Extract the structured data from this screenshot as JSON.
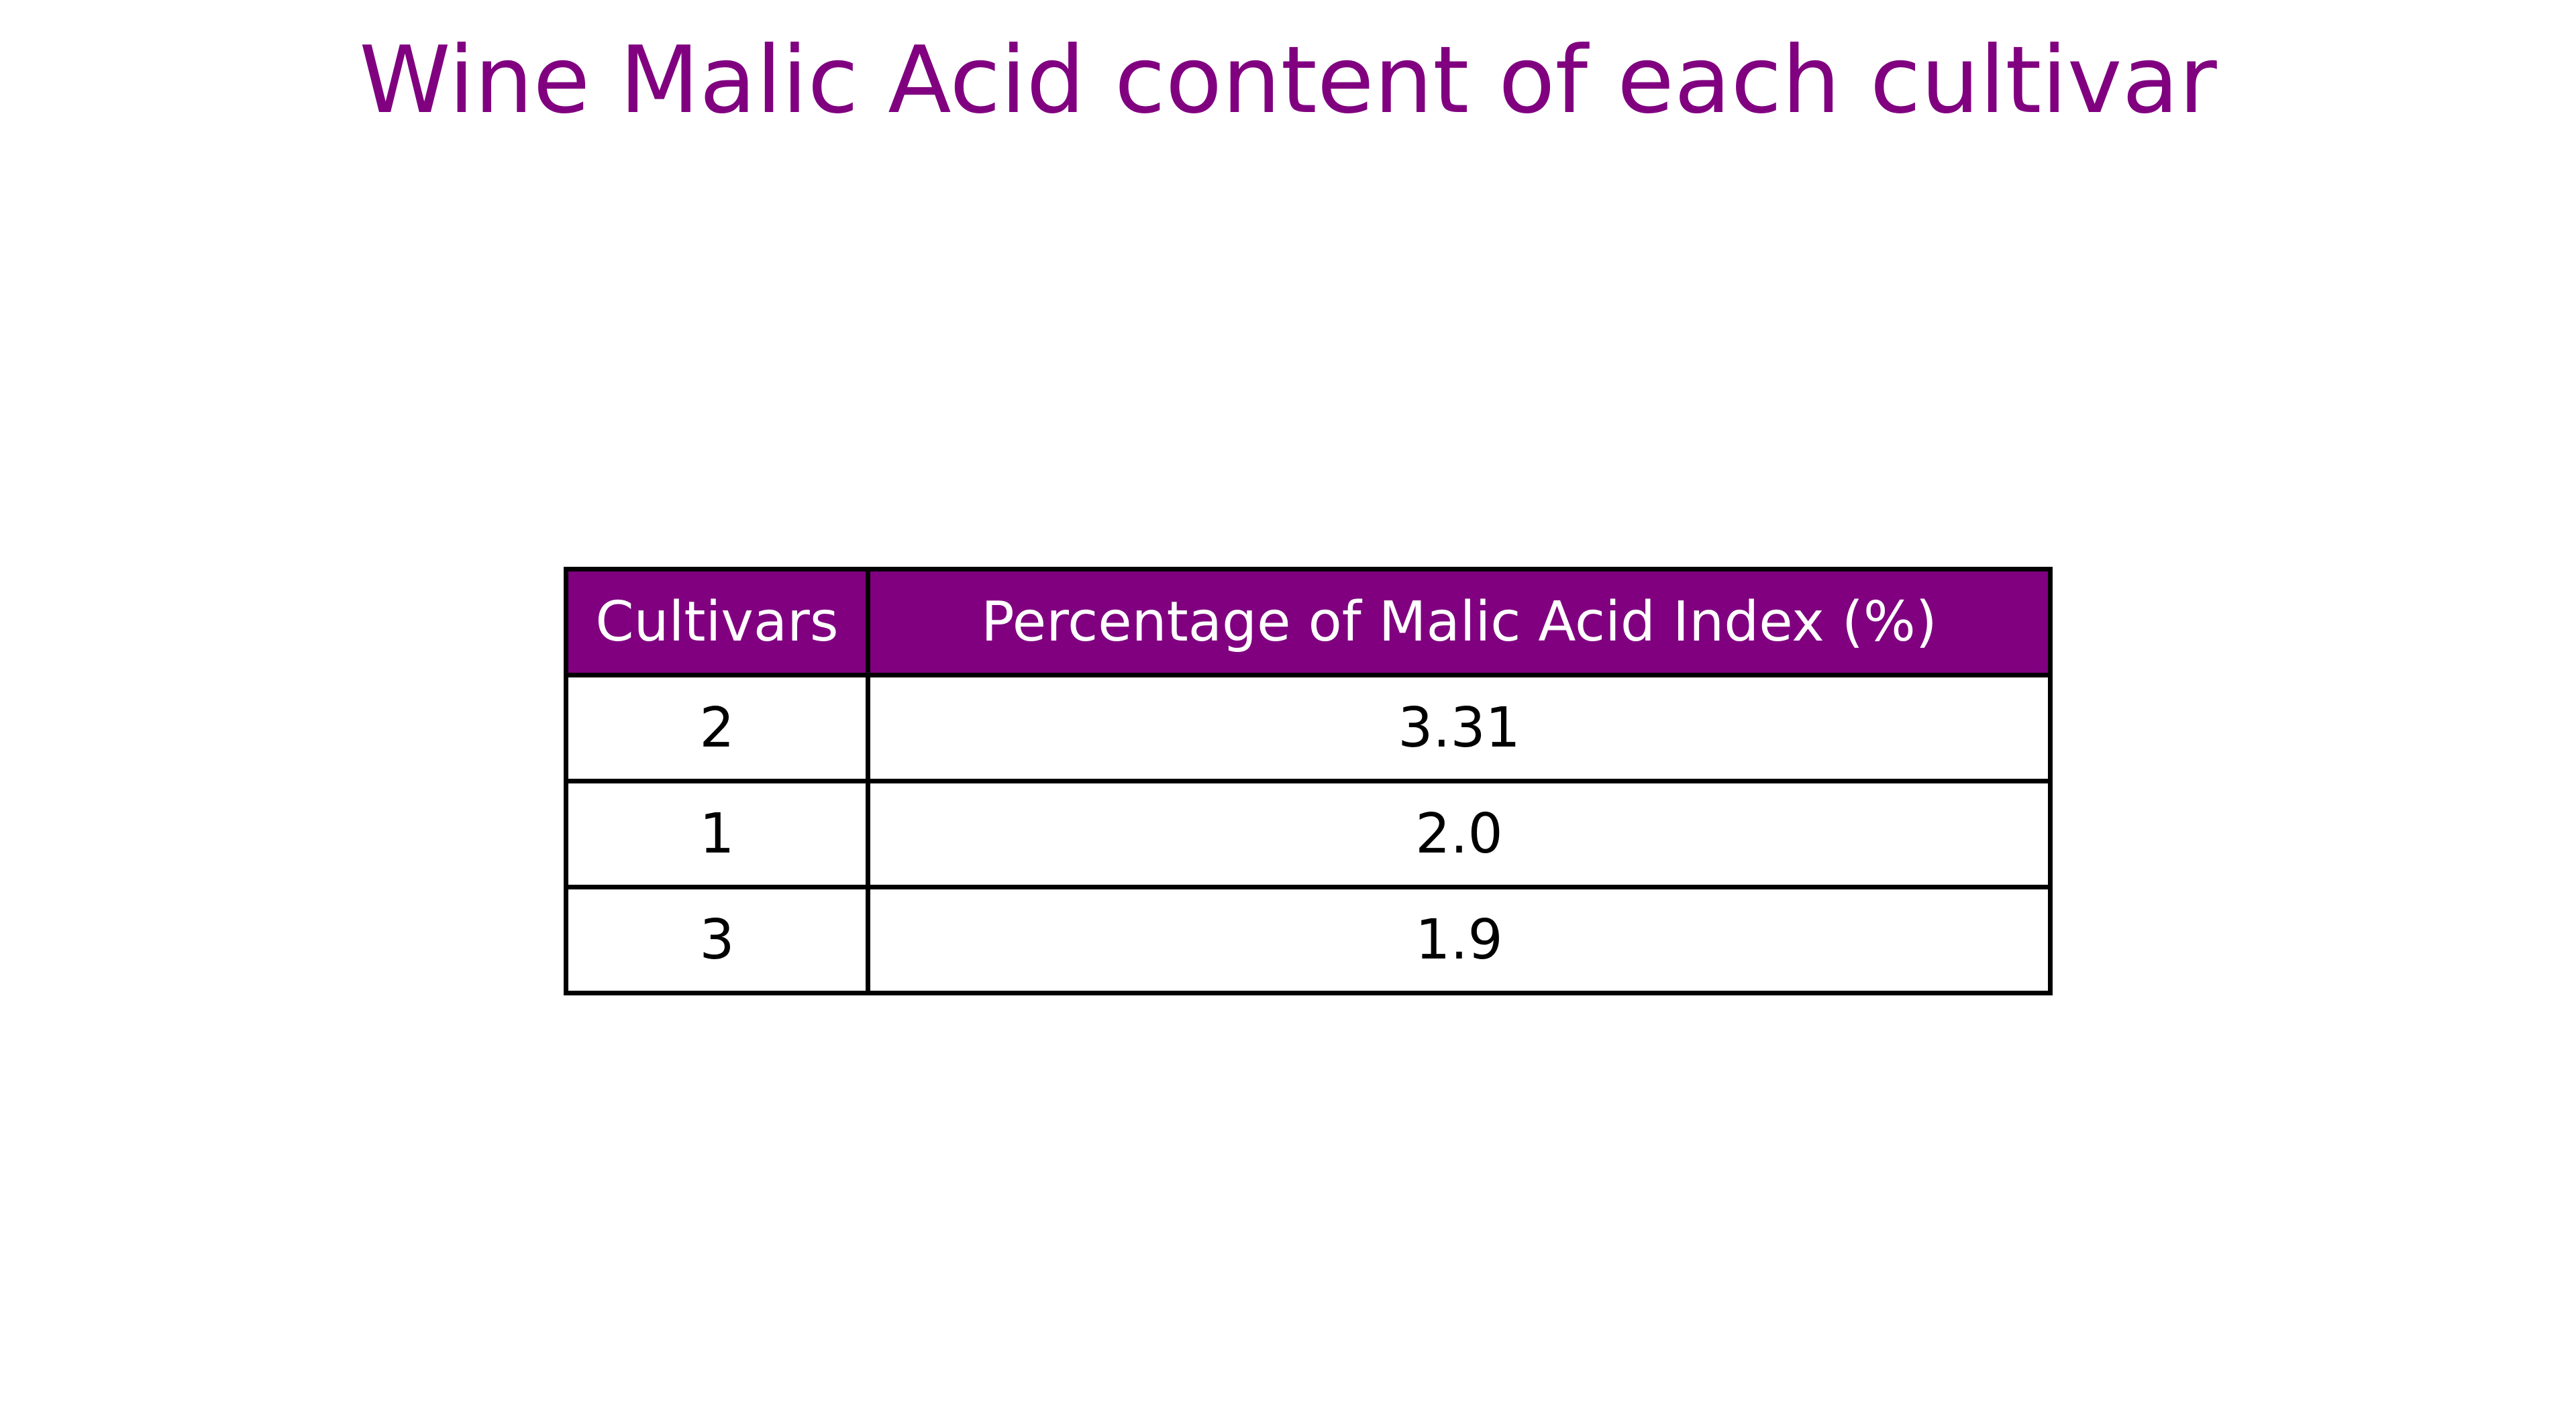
{
  "chart_data": {
    "type": "table",
    "title": "Wine Malic Acid content of each cultivar",
    "columns": [
      "Cultivars",
      "Percentage of Malic Acid Index (%)"
    ],
    "rows": [
      [
        "2",
        "3.31"
      ],
      [
        "1",
        "2.0"
      ],
      [
        "3",
        "1.9"
      ]
    ]
  },
  "colors": {
    "title": "#800080",
    "header_background": "#800080",
    "header_text": "#ffffff",
    "cell_text": "#000000",
    "border": "#000000"
  }
}
